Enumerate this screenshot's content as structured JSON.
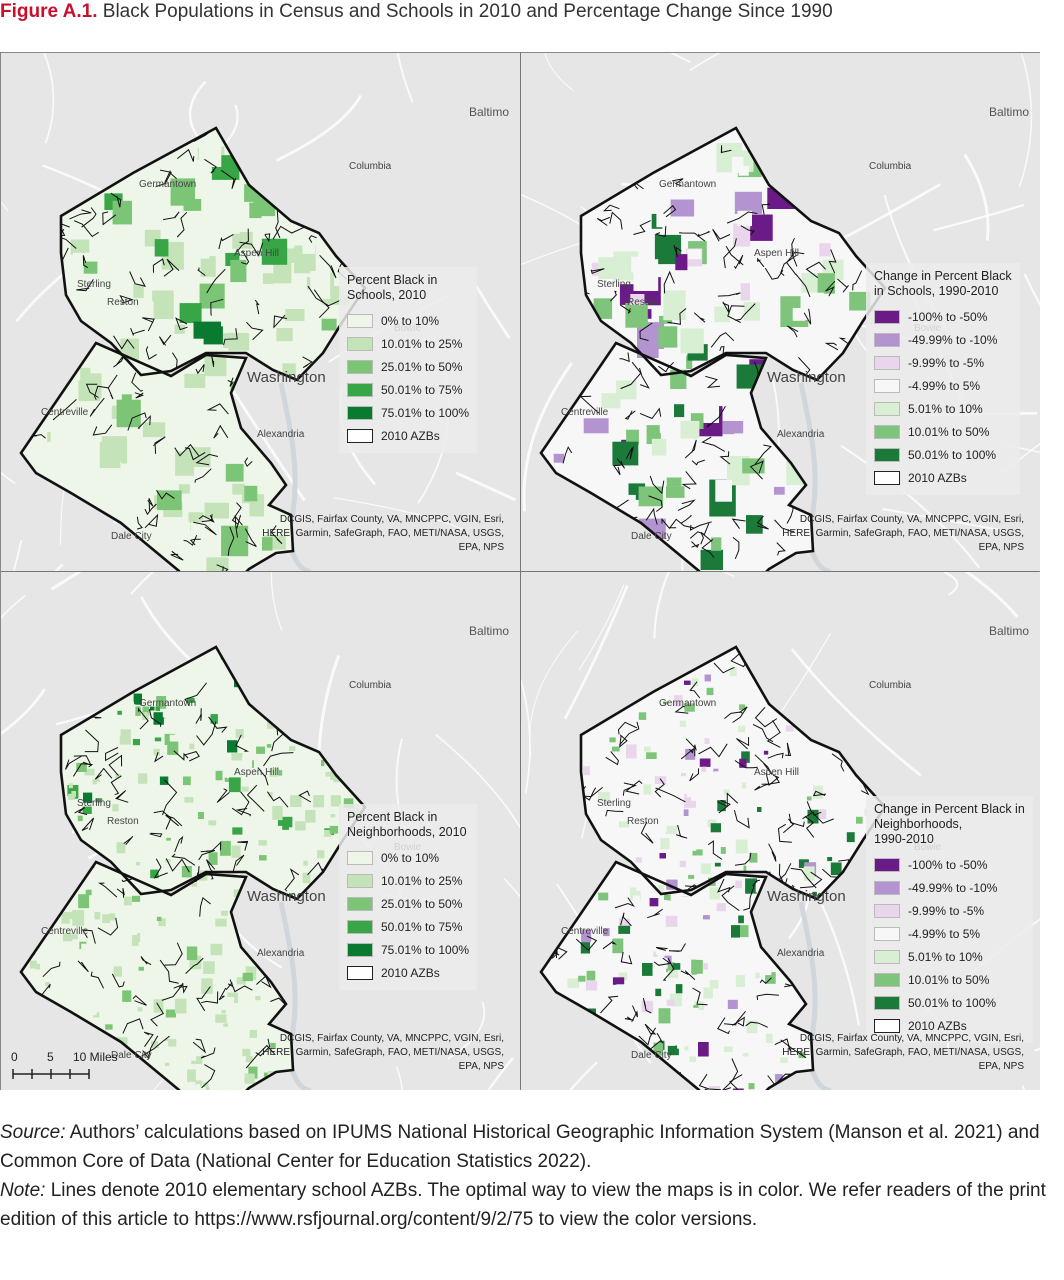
{
  "figure": {
    "label": "Figure A.1.",
    "title": "Black Populations in Census and Schools in 2010 and Percentage Change Since 1990"
  },
  "place_labels": {
    "baltimore": "Baltimo",
    "columbia": "Columbia",
    "germantown": "Germantown",
    "aspen_hill": "Aspen Hill",
    "sterling": "Sterling",
    "reston": "Reston",
    "bowie": "Bowie",
    "washington": "Washington",
    "centreville": "Centreville",
    "alexandria": "Alexandria",
    "dale_city": "Dale City"
  },
  "credit_lines": [
    "DCGIS, Fairfax County, VA, MNCPPC, VGIN, Esri,",
    "HERE, Garmin, SafeGraph, FAO, METI/NASA, USGS,",
    "EPA, NPS"
  ],
  "panels": {
    "schools_2010": {
      "legend_title": [
        "Percent Black in",
        "Schools, 2010"
      ],
      "legend_items": [
        {
          "label": "0% to 10%",
          "color": "#eef6e9"
        },
        {
          "label": "10.01% to 25%",
          "color": "#c4e3b8"
        },
        {
          "label": "25.01% to 50%",
          "color": "#7cc576"
        },
        {
          "label": "50.01% to 75%",
          "color": "#38a547"
        },
        {
          "label": "75.01% to 100%",
          "color": "#0b7a31"
        },
        {
          "label": "2010 AZBs",
          "color": "outline"
        }
      ]
    },
    "schools_change": {
      "legend_title": [
        "Change in Percent Black",
        "in Schools, 1990-2010"
      ],
      "legend_items": [
        {
          "label": "-100% to -50%",
          "color": "#6a1b88"
        },
        {
          "label": "-49.99% to -10%",
          "color": "#b493d1"
        },
        {
          "label": "-9.99% to -5%",
          "color": "#ead6ec"
        },
        {
          "label": "-4.99% to 5%",
          "color": "#f7f7f7"
        },
        {
          "label": "5.01% to 10%",
          "color": "#d9efd3"
        },
        {
          "label": "10.01% to 50%",
          "color": "#7ec47a"
        },
        {
          "label": "50.01% to 100%",
          "color": "#1b7a3a"
        },
        {
          "label": "2010 AZBs",
          "color": "outline"
        }
      ]
    },
    "neighborhoods_2010": {
      "legend_title": [
        "Percent Black in",
        "Neighborhoods, 2010"
      ],
      "legend_items": [
        {
          "label": "0% to 10%",
          "color": "#eef6e9"
        },
        {
          "label": "10.01% to 25%",
          "color": "#c4e3b8"
        },
        {
          "label": "25.01% to 50%",
          "color": "#7cc576"
        },
        {
          "label": "50.01% to 75%",
          "color": "#38a547"
        },
        {
          "label": "75.01% to 100%",
          "color": "#0b7a31"
        },
        {
          "label": "2010 AZBs",
          "color": "outline"
        }
      ],
      "scale": {
        "ticks": [
          "0",
          "5",
          "10 Miles"
        ]
      }
    },
    "neighborhoods_change": {
      "legend_title": [
        "Change in Percent Black in",
        "Neighborhoods,",
        "1990-2010"
      ],
      "legend_items": [
        {
          "label": "-100% to -50%",
          "color": "#6a1b88"
        },
        {
          "label": "-49.99% to -10%",
          "color": "#b493d1"
        },
        {
          "label": "-9.99% to -5%",
          "color": "#ead6ec"
        },
        {
          "label": "-4.99% to 5%",
          "color": "#f7f7f7"
        },
        {
          "label": "5.01% to 10%",
          "color": "#d9efd3"
        },
        {
          "label": "10.01% to 50%",
          "color": "#7ec47a"
        },
        {
          "label": "50.01% to 100%",
          "color": "#1b7a3a"
        },
        {
          "label": "2010 AZBs",
          "color": "outline"
        }
      ]
    }
  },
  "notes": {
    "source_label": "Source:",
    "source_text": "Authors’ calculations based on IPUMS National Historical Geographic Information System (Manson et al. 2021) and Common Core of Data (National Center for Education Statistics 2022).",
    "note_label": "Note:",
    "note_text": "Lines denote 2010 elementary school AZBs. The optimal way to view the maps is in color. We refer readers of the print edition of this article to https://www.rsfjournal.org/content/9/2/75 to view the color versions."
  }
}
